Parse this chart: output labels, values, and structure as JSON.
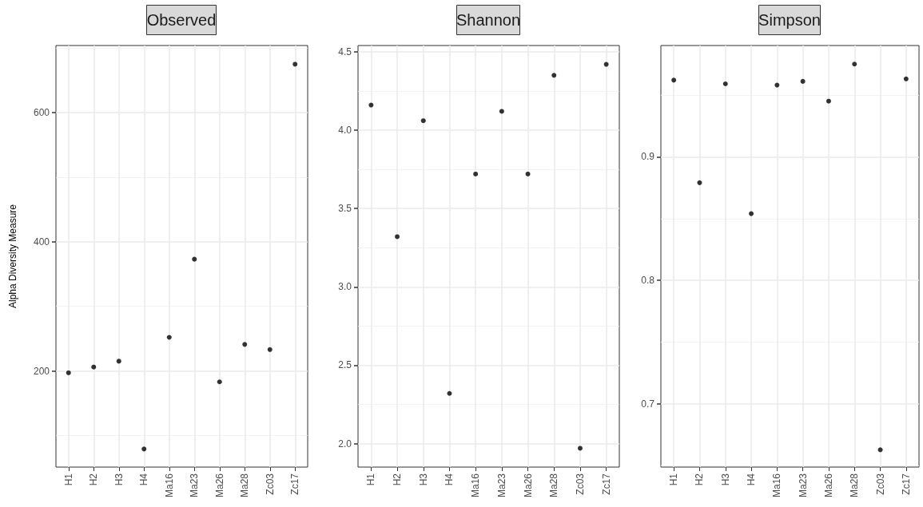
{
  "chart_data": [
    {
      "type": "scatter",
      "title": "Observed",
      "ylabel": "Alpha Diversity Measure",
      "categories": [
        "H1",
        "H2",
        "H3",
        "H4",
        "Ma16",
        "Ma23",
        "Ma26",
        "Ma28",
        "Zc03",
        "Zc17"
      ],
      "values": [
        197,
        206,
        215,
        79,
        252,
        373,
        183,
        241,
        233,
        675
      ],
      "color": "#000000",
      "ylim": [
        51,
        704
      ],
      "yticks": [
        200,
        400,
        600
      ],
      "grid": true,
      "marker": "circle"
    },
    {
      "type": "scatter",
      "title": "Shannon",
      "categories": [
        "H1",
        "H2",
        "H3",
        "H4",
        "Ma16",
        "Ma23",
        "Ma26",
        "Ma28",
        "Zc03",
        "Zc17"
      ],
      "values": [
        4.16,
        3.32,
        4.06,
        2.32,
        3.72,
        4.12,
        3.72,
        4.35,
        1.97,
        4.42
      ],
      "color": "#000000",
      "ylim": [
        1.85,
        4.54
      ],
      "yticks": [
        {
          "value": 2,
          "label": "2.0"
        },
        2.5,
        {
          "value": 3,
          "label": "3.0"
        },
        3.5,
        {
          "value": 4,
          "label": "4.0"
        },
        4.5
      ],
      "grid": true,
      "marker": "circle"
    },
    {
      "type": "scatter",
      "title": "Simpson",
      "categories": [
        "H1",
        "H2",
        "H3",
        "H4",
        "Ma16",
        "Ma23",
        "Ma26",
        "Ma28",
        "Zc03",
        "Zc17"
      ],
      "values": [
        0.962,
        0.879,
        0.959,
        0.854,
        0.958,
        0.961,
        0.945,
        0.975,
        0.663,
        0.963
      ],
      "color": "#000000",
      "ylim": [
        0.649,
        0.99
      ],
      "yticks": [
        0.7,
        0.8,
        0.9
      ],
      "grid": true,
      "marker": "circle"
    }
  ]
}
